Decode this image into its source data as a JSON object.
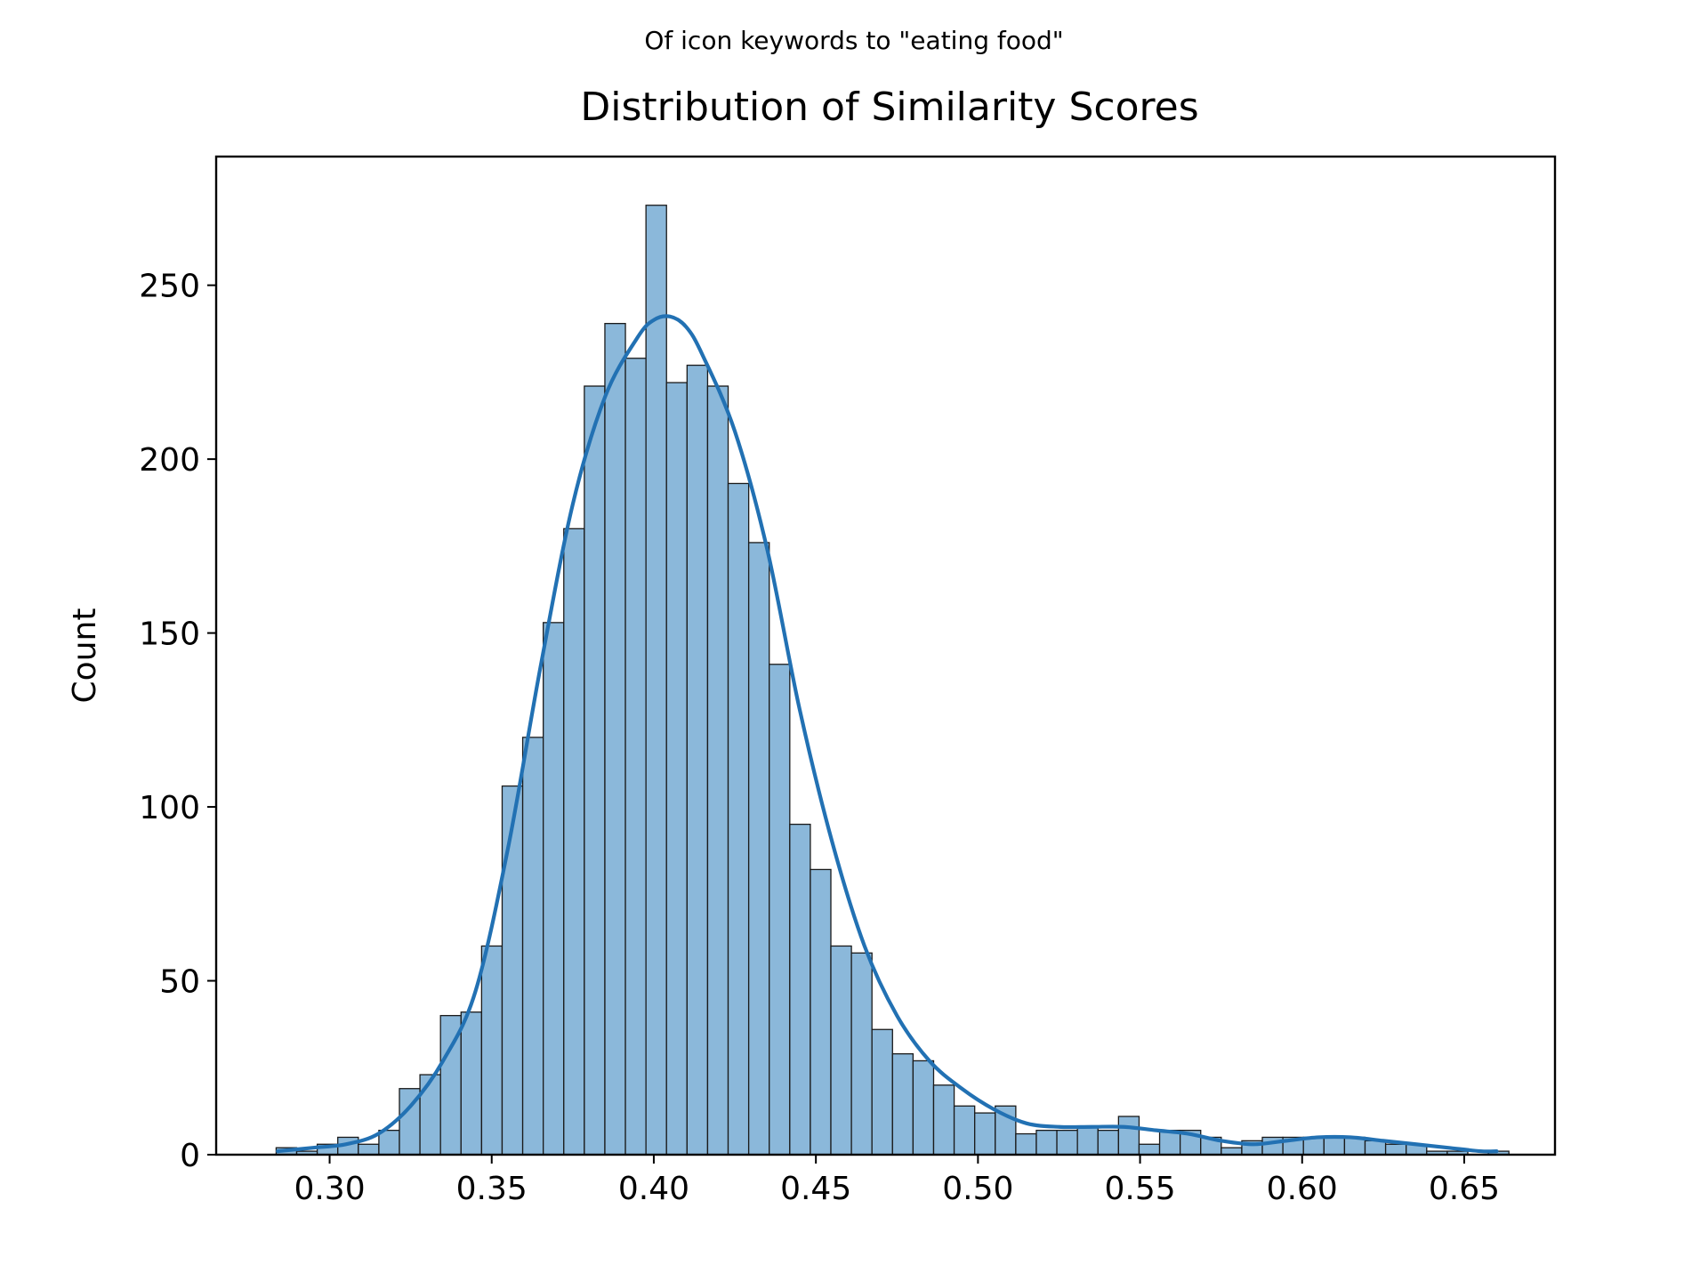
{
  "figure": {
    "suptitle": "Of icon keywords to \"eating food\"",
    "background": "#ffffff"
  },
  "chart_data": {
    "type": "bar",
    "subtype": "histogram-with-kde",
    "title": "Distribution of Similarity Scores",
    "xlabel": "",
    "ylabel": "Count",
    "xlim": [
      0.265,
      0.678
    ],
    "ylim": [
      0,
      287
    ],
    "xticks": [
      0.3,
      0.35,
      0.4,
      0.45,
      0.5,
      0.55,
      0.6,
      0.65
    ],
    "xtick_labels": [
      "0.30",
      "0.35",
      "0.40",
      "0.45",
      "0.50",
      "0.55",
      "0.60",
      "0.65"
    ],
    "yticks": [
      0,
      50,
      100,
      150,
      200,
      250
    ],
    "ytick_labels": [
      "0",
      "50",
      "100",
      "150",
      "200",
      "250"
    ],
    "grid": false,
    "bar_color": "#8bb8da",
    "bar_edge_color": "#1a1a1a",
    "line_color": "#2271b3",
    "bins": {
      "start": 0.2835,
      "width": 0.006338,
      "counts": [
        2,
        1,
        3,
        5,
        3,
        7,
        19,
        23,
        40,
        41,
        60,
        106,
        120,
        153,
        180,
        221,
        239,
        229,
        273,
        222,
        227,
        221,
        193,
        176,
        141,
        95,
        82,
        60,
        58,
        36,
        29,
        27,
        20,
        14,
        12,
        14,
        6,
        7,
        7,
        8,
        7,
        11,
        3,
        7,
        7,
        5,
        2,
        4,
        5,
        5,
        5,
        5,
        5,
        4,
        3,
        3,
        1,
        1,
        0,
        1
      ]
    },
    "kde": {
      "x": [
        0.284,
        0.295,
        0.305,
        0.315,
        0.325,
        0.335,
        0.345,
        0.355,
        0.365,
        0.375,
        0.385,
        0.395,
        0.4,
        0.405,
        0.41,
        0.415,
        0.425,
        0.435,
        0.445,
        0.455,
        0.465,
        0.475,
        0.485,
        0.495,
        0.505,
        0.515,
        0.525,
        0.535,
        0.545,
        0.555,
        0.565,
        0.575,
        0.585,
        0.595,
        0.605,
        0.615,
        0.625,
        0.635,
        0.645,
        0.655,
        0.66
      ],
      "y": [
        1,
        2,
        3,
        6,
        14,
        27,
        47,
        88,
        140,
        187,
        218,
        235,
        240,
        241,
        238,
        230,
        208,
        174,
        128,
        90,
        60,
        40,
        27,
        19,
        13,
        9,
        8,
        8,
        8,
        7,
        6,
        4,
        3,
        4,
        5,
        5,
        4,
        3,
        2,
        1,
        1
      ]
    }
  }
}
